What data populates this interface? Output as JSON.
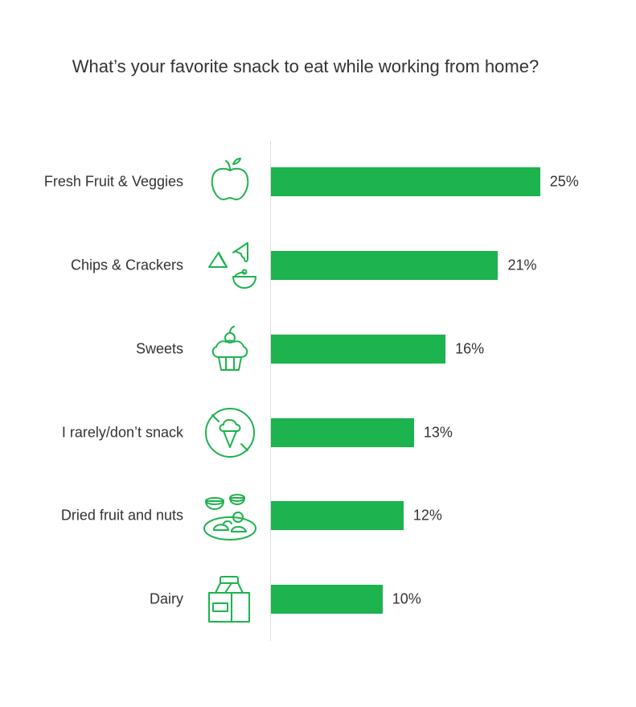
{
  "chart_data": {
    "type": "bar",
    "orientation": "horizontal",
    "title": "What’s your favorite snack to eat while working from home?",
    "categories": [
      "Fresh Fruit & Veggies",
      "Chips & Crackers",
      "Sweets",
      "I rarely/don’t snack",
      "Dried fruit and nuts",
      "Dairy"
    ],
    "values": [
      25,
      21,
      16,
      13,
      12,
      10
    ],
    "data_labels": [
      "25%",
      "21%",
      "16%",
      "13%",
      "12%",
      "10%"
    ],
    "icons": [
      "apple-icon",
      "chips-icon",
      "cupcake-icon",
      "no-ice-cream-icon",
      "nuts-icon",
      "milk-carton-icon"
    ],
    "grid": false,
    "legend": "none",
    "bar_color": "#1db34e"
  }
}
